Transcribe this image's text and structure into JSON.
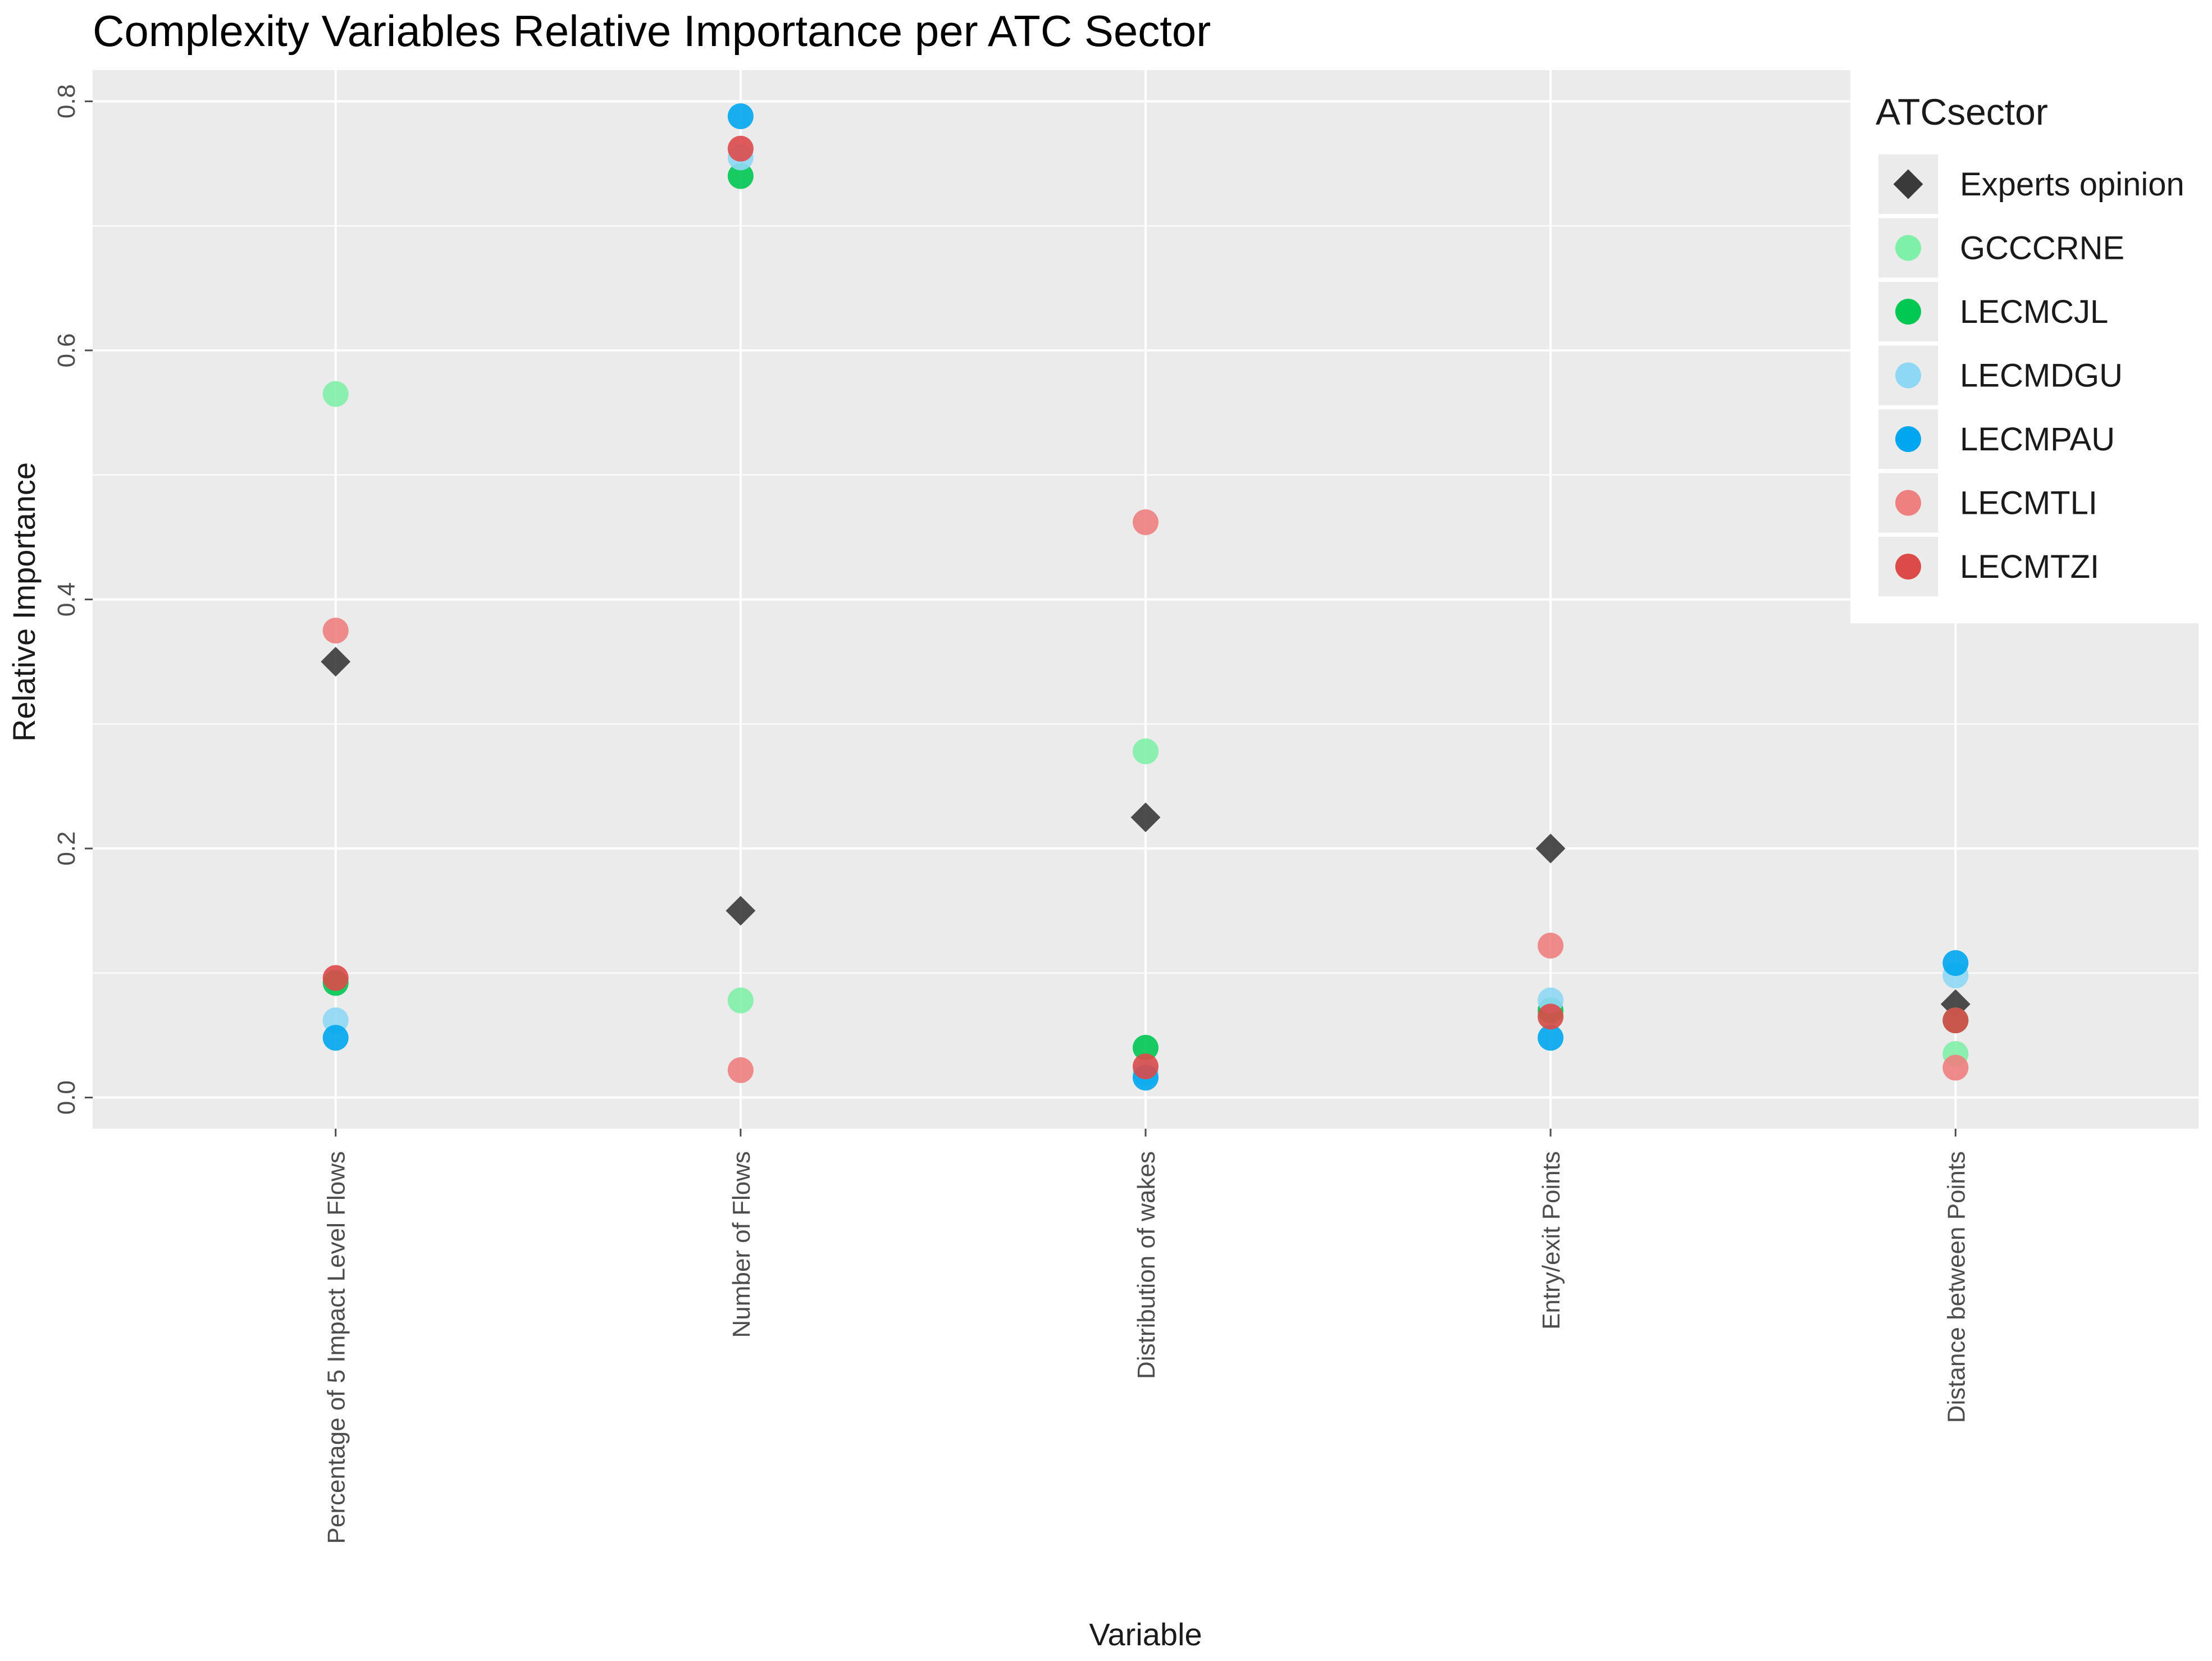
{
  "chart_data": {
    "type": "scatter",
    "title": "Complexity Variables Relative Importance per ATC Sector",
    "xlabel": "Variable",
    "ylabel": "Relative Importance",
    "categories": [
      "Percentage of 5 Impact Level Flows",
      "Number of Flows",
      "Distribution of wakes",
      "Entry/exit Points",
      "Distance between Points"
    ],
    "ylim": [
      -0.025,
      0.825
    ],
    "yticks": [
      0.0,
      0.2,
      0.4,
      0.6,
      0.8
    ],
    "ytick_labels": [
      "0.0",
      "0.2",
      "0.4",
      "0.6",
      "0.8"
    ],
    "grid": true,
    "legend": {
      "title": "ATCsector",
      "position": "top-right"
    },
    "series": [
      {
        "name": "Experts opinion",
        "marker": "diamond",
        "color": "#3a3a3a",
        "values": [
          0.35,
          0.15,
          0.225,
          0.2,
          0.075
        ]
      },
      {
        "name": "GCCCRNE",
        "marker": "circle",
        "color": "#7ff0a8",
        "values": [
          0.565,
          0.078,
          0.278,
          0.065,
          0.035
        ]
      },
      {
        "name": "LECMCJL",
        "marker": "circle",
        "color": "#00c853",
        "values": [
          0.092,
          0.74,
          0.04,
          0.07,
          0.062
        ]
      },
      {
        "name": "LECMDGU",
        "marker": "circle",
        "color": "#8fd8f5",
        "values": [
          0.062,
          0.755,
          0.02,
          0.078,
          0.098
        ]
      },
      {
        "name": "LECMPAU",
        "marker": "circle",
        "color": "#00a6f0",
        "values": [
          0.048,
          0.788,
          0.016,
          0.048,
          0.108
        ]
      },
      {
        "name": "LECMTLI",
        "marker": "circle",
        "color": "#ee8080",
        "values": [
          0.375,
          0.022,
          0.462,
          0.122,
          0.024
        ]
      },
      {
        "name": "LECMTZI",
        "marker": "circle",
        "color": "#dd4a4a",
        "values": [
          0.096,
          0.762,
          0.025,
          0.065,
          0.062
        ]
      }
    ]
  }
}
